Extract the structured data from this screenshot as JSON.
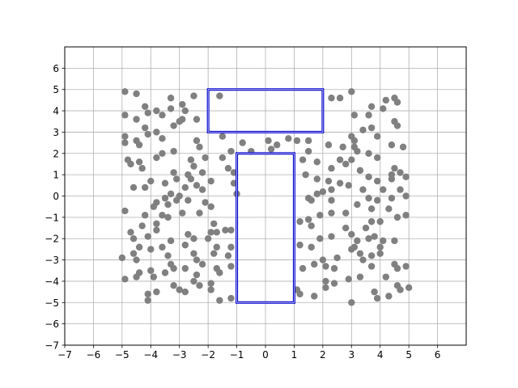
{
  "chart_data": {
    "type": "scatter",
    "title": "",
    "xlabel": "",
    "ylabel": "",
    "xlim": [
      -7,
      7
    ],
    "ylim": [
      -7,
      7
    ],
    "grid": true,
    "xticks": [
      -7,
      -6,
      -5,
      -4,
      -3,
      -2,
      -1,
      0,
      1,
      2,
      3,
      4,
      5,
      6
    ],
    "yticks": [
      -7,
      -6,
      -5,
      -4,
      -3,
      -2,
      -1,
      0,
      1,
      2,
      3,
      4,
      5,
      6
    ],
    "xtick_labels": [
      "−7",
      "−6",
      "−5",
      "−4",
      "−3",
      "−2",
      "−1",
      "0",
      "1",
      "2",
      "3",
      "4",
      "5",
      "6"
    ],
    "ytick_labels": [
      "−7",
      "−6",
      "−5",
      "−4",
      "−3",
      "−2",
      "−1",
      "0",
      "1",
      "2",
      "3",
      "4",
      "5",
      "6"
    ],
    "point_color": "#808080",
    "rect_color": "#0000cc",
    "rectangles": [
      {
        "x0": -2,
        "x1": 2,
        "y0": 3,
        "y1": 5
      },
      {
        "x0": -1,
        "x1": 1,
        "y0": -5,
        "y1": 2
      }
    ],
    "points": [
      [
        -4.9,
        4.9
      ],
      [
        -4.5,
        4.8
      ],
      [
        -3.3,
        4.6
      ],
      [
        -2.5,
        4.7
      ],
      [
        -1.6,
        4.7
      ],
      [
        2.3,
        4.6
      ],
      [
        2.6,
        4.6
      ],
      [
        3.0,
        4.9
      ],
      [
        4.2,
        4.5
      ],
      [
        4.5,
        4.6
      ],
      [
        4.6,
        4.4
      ],
      [
        -4.2,
        4.2
      ],
      [
        -3.8,
        4.0
      ],
      [
        -3.3,
        4.1
      ],
      [
        -2.9,
        4.3
      ],
      [
        -2.8,
        4.0
      ],
      [
        -4.9,
        3.8
      ],
      [
        -4.5,
        3.6
      ],
      [
        -4.1,
        3.9
      ],
      [
        -3.6,
        3.8
      ],
      [
        -3.0,
        3.5
      ],
      [
        -2.4,
        3.6
      ],
      [
        3.7,
        4.2
      ],
      [
        4.1,
        4.1
      ],
      [
        3.1,
        3.8
      ],
      [
        3.6,
        3.8
      ],
      [
        4.5,
        3.5
      ],
      [
        -4.2,
        3.2
      ],
      [
        -3.8,
        3.0
      ],
      [
        -3.2,
        3.3
      ],
      [
        -2.9,
        3.6
      ],
      [
        -4.1,
        2.9
      ],
      [
        -3.6,
        2.7
      ],
      [
        -4.9,
        2.8
      ],
      [
        -4.9,
        2.5
      ],
      [
        -4.5,
        2.6
      ],
      [
        -4.4,
        2.4
      ],
      [
        -2.4,
        2.6
      ],
      [
        -2.3,
        2.3
      ],
      [
        -1.5,
        2.8
      ],
      [
        -0.8,
        2.5
      ],
      [
        0.1,
        2.6
      ],
      [
        0.4,
        2.4
      ],
      [
        0.8,
        2.7
      ],
      [
        1.1,
        2.6
      ],
      [
        1.5,
        2.6
      ],
      [
        3.4,
        3.1
      ],
      [
        3.7,
        3.2
      ],
      [
        4.6,
        3.3
      ],
      [
        3.0,
        2.8
      ],
      [
        3.1,
        2.6
      ],
      [
        3.9,
        2.8
      ],
      [
        2.2,
        2.4
      ],
      [
        2.7,
        2.3
      ],
      [
        3.1,
        2.3
      ],
      [
        4.4,
        2.4
      ],
      [
        4.8,
        2.3
      ],
      [
        -3.6,
        2.0
      ],
      [
        -3.2,
        2.1
      ],
      [
        -4.8,
        1.7
      ],
      [
        -4.7,
        1.5
      ],
      [
        -4.4,
        1.6
      ],
      [
        -4.3,
        1.3
      ],
      [
        -3.8,
        1.8
      ],
      [
        -2.1,
        1.8
      ],
      [
        -2.6,
        1.7
      ],
      [
        -2.5,
        1.4
      ],
      [
        -1.5,
        1.8
      ],
      [
        -1.2,
        2.1
      ],
      [
        -1.1,
        1.1
      ],
      [
        -1.1,
        0.6
      ],
      [
        -1.0,
        0.1
      ],
      [
        -0.5,
        2.1
      ],
      [
        0.2,
        2.2
      ],
      [
        1.5,
        2.1
      ],
      [
        1.3,
        1.7
      ],
      [
        1.8,
        1.6
      ],
      [
        2.3,
        1.3
      ],
      [
        2.6,
        1.7
      ],
      [
        3.0,
        1.7
      ],
      [
        3.2,
        2.1
      ],
      [
        3.6,
        2.0
      ],
      [
        3.9,
        1.8
      ],
      [
        2.8,
        1.5
      ],
      [
        3.3,
        1.2
      ],
      [
        4.5,
        1.3
      ],
      [
        4.7,
        1.1
      ],
      [
        4.4,
        1.0
      ],
      [
        -3.2,
        1.1
      ],
      [
        -2.7,
        1.0
      ],
      [
        -2.2,
        1.1
      ],
      [
        -1.3,
        1.3
      ],
      [
        -3.1,
        0.8
      ],
      [
        -2.6,
        0.8
      ],
      [
        -3.5,
        0.6
      ],
      [
        -2.8,
        0.4
      ],
      [
        -4.0,
        0.7
      ],
      [
        -4.6,
        0.4
      ],
      [
        -4.2,
        0.4
      ],
      [
        -2.4,
        0.5
      ],
      [
        -1.9,
        0.7
      ],
      [
        -2.2,
        0.3
      ],
      [
        1.4,
        1.0
      ],
      [
        1.8,
        0.8
      ],
      [
        2.2,
        0.7
      ],
      [
        2.6,
        0.6
      ],
      [
        2.9,
        0.5
      ],
      [
        3.6,
        0.9
      ],
      [
        3.9,
        0.7
      ],
      [
        4.4,
        0.8
      ],
      [
        4.9,
        0.9
      ],
      [
        3.4,
        0.3
      ],
      [
        4.1,
        0.3
      ],
      [
        4.7,
        0.3
      ],
      [
        -3.3,
        0.1
      ],
      [
        -3.0,
        0.0
      ],
      [
        -3.5,
        -0.1
      ],
      [
        -3.8,
        -0.3
      ],
      [
        -3.9,
        -0.5
      ],
      [
        -3.4,
        -0.4
      ],
      [
        -3.1,
        -0.2
      ],
      [
        -2.7,
        -0.2
      ],
      [
        -2.1,
        -0.3
      ],
      [
        -1.9,
        -0.5
      ],
      [
        1.5,
        -0.1
      ],
      [
        1.8,
        0.1
      ],
      [
        2.0,
        0.2
      ],
      [
        2.3,
        0.3
      ],
      [
        1.6,
        -0.2
      ],
      [
        2.3,
        -0.2
      ],
      [
        3.6,
        -0.1
      ],
      [
        3.9,
        -0.2
      ],
      [
        4.4,
        -0.1
      ],
      [
        4.9,
        0.0
      ],
      [
        3.2,
        -0.4
      ],
      [
        3.7,
        -0.6
      ],
      [
        4.3,
        -0.6
      ],
      [
        -4.9,
        -0.7
      ],
      [
        -4.2,
        -0.9
      ],
      [
        -3.6,
        -0.9
      ],
      [
        -2.9,
        -0.8
      ],
      [
        -2.3,
        -0.8
      ],
      [
        -3.4,
        -1.0
      ],
      [
        -4.3,
        -1.4
      ],
      [
        -3.8,
        -1.3
      ],
      [
        -1.8,
        -1.3
      ],
      [
        -1.7,
        -1.7
      ],
      [
        -1.4,
        -1.6
      ],
      [
        -1.2,
        -1.6
      ],
      [
        -1.9,
        -1.7
      ],
      [
        1.2,
        -1.2
      ],
      [
        1.5,
        -1.1
      ],
      [
        1.6,
        -1.4
      ],
      [
        1.9,
        -0.9
      ],
      [
        2.3,
        -0.8
      ],
      [
        2.8,
        -0.8
      ],
      [
        3.7,
        -1.2
      ],
      [
        4.0,
        -1.2
      ],
      [
        4.6,
        -1.0
      ],
      [
        4.9,
        -0.9
      ],
      [
        3.5,
        -1.5
      ],
      [
        2.8,
        -1.5
      ],
      [
        3.0,
        -1.8
      ],
      [
        -4.7,
        -1.7
      ],
      [
        -4.6,
        -2.0
      ],
      [
        -3.8,
        -1.6
      ],
      [
        -4.1,
        -1.9
      ],
      [
        -3.3,
        -2.1
      ],
      [
        -2.7,
        -1.8
      ],
      [
        -2.5,
        -2.0
      ],
      [
        -2.0,
        -2.0
      ],
      [
        -2.8,
        -2.3
      ],
      [
        -4.0,
        -2.5
      ],
      [
        -4.4,
        -2.4
      ],
      [
        -3.6,
        -2.4
      ],
      [
        -1.7,
        -2.4
      ],
      [
        -1.2,
        -2.4
      ],
      [
        1.2,
        -2.3
      ],
      [
        1.6,
        -2.4
      ],
      [
        1.9,
        -2.0
      ],
      [
        2.3,
        -1.9
      ],
      [
        3.2,
        -2.1
      ],
      [
        3.6,
        -2.0
      ],
      [
        3.8,
        -1.9
      ],
      [
        4.1,
        -2.1
      ],
      [
        4.5,
        -2.1
      ],
      [
        3.1,
        -2.4
      ],
      [
        4.0,
        -2.4
      ],
      [
        -5.0,
        -2.9
      ],
      [
        -4.6,
        -2.7
      ],
      [
        -4.5,
        -3.0
      ],
      [
        -3.4,
        -2.8
      ],
      [
        -2.5,
        -2.7
      ],
      [
        -2.4,
        -3.0
      ],
      [
        -1.8,
        -2.7
      ],
      [
        -1.3,
        -2.8
      ],
      [
        -2.8,
        -3.4
      ],
      [
        -3.3,
        -3.2
      ],
      [
        -4.4,
        -3.6
      ],
      [
        -4.0,
        -3.5
      ],
      [
        -2.2,
        -3.2
      ],
      [
        -1.7,
        -3.4
      ],
      [
        -1.2,
        -3.3
      ],
      [
        1.3,
        -3.4
      ],
      [
        1.7,
        -3.2
      ],
      [
        2.0,
        -3.0
      ],
      [
        2.1,
        -3.3
      ],
      [
        2.5,
        -2.9
      ],
      [
        2.4,
        -3.4
      ],
      [
        3.0,
        -2.5
      ],
      [
        3.3,
        -2.7
      ],
      [
        3.4,
        -3.0
      ],
      [
        3.7,
        -2.8
      ],
      [
        4.0,
        -2.7
      ],
      [
        3.7,
        -3.3
      ],
      [
        4.5,
        -3.2
      ],
      [
        4.6,
        -3.4
      ],
      [
        4.9,
        -3.3
      ],
      [
        -4.9,
        -3.9
      ],
      [
        -4.5,
        -3.8
      ],
      [
        -3.9,
        -3.8
      ],
      [
        -3.5,
        -3.6
      ],
      [
        -3.2,
        -3.4
      ],
      [
        -2.4,
        -3.7
      ],
      [
        -1.6,
        -3.6
      ],
      [
        -3.2,
        -4.2
      ],
      [
        -2.5,
        -4.0
      ],
      [
        -1.9,
        -4.1
      ],
      [
        -2.8,
        -4.5
      ],
      [
        -2.3,
        -4.2
      ],
      [
        -3.0,
        -4.4
      ],
      [
        -3.8,
        -4.5
      ],
      [
        -4.1,
        -4.6
      ],
      [
        -4.1,
        -4.9
      ],
      [
        -1.9,
        -4.4
      ],
      [
        -1.2,
        -4.8
      ],
      [
        -1.6,
        -4.9
      ],
      [
        1.1,
        -4.4
      ],
      [
        1.2,
        -4.6
      ],
      [
        1.7,
        -4.7
      ],
      [
        2.1,
        -4.0
      ],
      [
        2.1,
        -4.3
      ],
      [
        2.4,
        -4.1
      ],
      [
        2.9,
        -3.9
      ],
      [
        3.3,
        -3.8
      ],
      [
        4.2,
        -3.8
      ],
      [
        3.8,
        -4.5
      ],
      [
        3.9,
        -4.8
      ],
      [
        4.3,
        -4.7
      ],
      [
        4.6,
        -4.2
      ],
      [
        4.7,
        -4.4
      ],
      [
        5.0,
        -4.3
      ],
      [
        3.0,
        -5.0
      ]
    ]
  }
}
